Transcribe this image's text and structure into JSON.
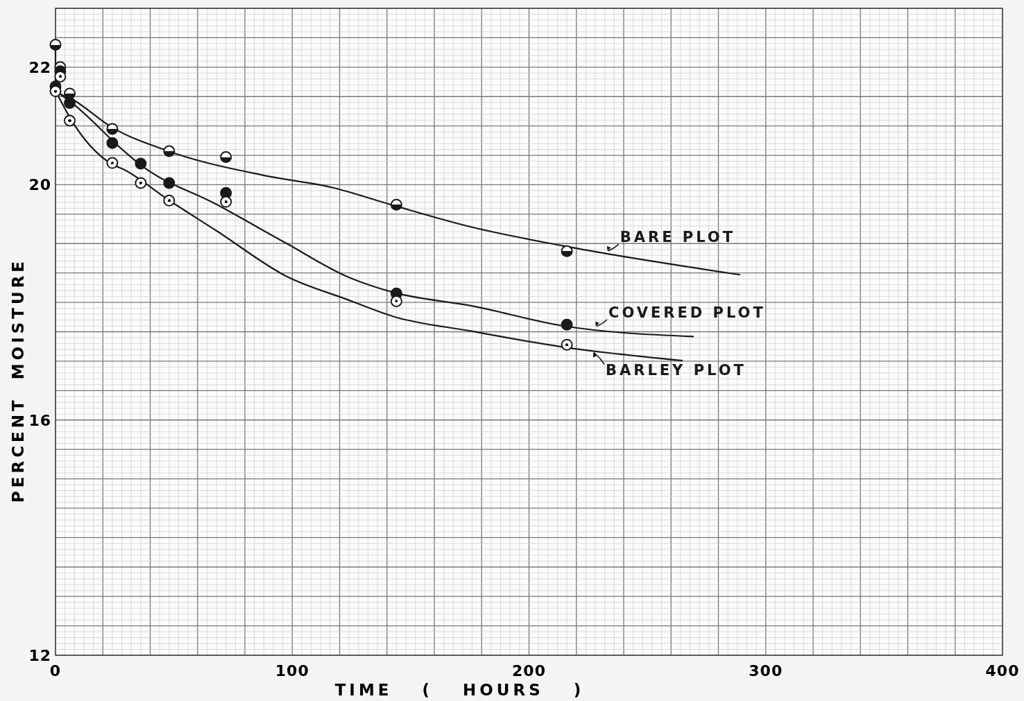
{
  "chart_data": {
    "type": "scatter",
    "xlabel": "TIME ( HOURS )",
    "ylabel": "PERCENT MOISTURE",
    "xlim": [
      0,
      400
    ],
    "xticks": [
      0,
      100,
      200,
      300,
      400
    ],
    "ylim": [
      12,
      23
    ],
    "yticks": [
      12,
      16,
      20,
      22
    ],
    "grid": true,
    "series": [
      {
        "marker": "circle",
        "color": "#1a1a1a",
        "x": [
          0,
          2,
          6,
          24,
          48,
          72,
          144,
          216
        ],
        "values": [
          22.38,
          22.0,
          21.55,
          20.95,
          20.57,
          20.47,
          19.66,
          18.87
        ]
      },
      {
        "marker": "circle",
        "color": "#1a1a1a",
        "x": [
          0,
          2,
          6,
          24,
          36,
          48,
          72,
          144,
          216
        ],
        "values": [
          21.67,
          21.93,
          21.39,
          20.71,
          20.36,
          20.03,
          19.86,
          18.15,
          17.62
        ]
      },
      {
        "marker": "circle",
        "color": "#1a1a1a",
        "x": [
          0,
          2,
          6,
          24,
          36,
          48,
          72,
          144,
          216
        ],
        "values": [
          21.59,
          21.84,
          21.09,
          20.37,
          20.03,
          19.73,
          19.71,
          18.02,
          17.28
        ]
      },
      {
        "type": "line",
        "name": "BARE PLOT",
        "color": "#1a1a1a",
        "x": [
          0,
          0,
          7.3,
          23.7,
          47.8,
          87.9,
          117.2,
          142.7,
          175.8,
          214.5,
          289.2
        ],
        "values": [
          22.38,
          21.6,
          21.45,
          20.98,
          20.57,
          20.16,
          19.95,
          19.65,
          19.28,
          18.96,
          18.47
        ]
      },
      {
        "type": "line",
        "name": "COVERED PLOT",
        "color": "#1a1a1a",
        "x": [
          0,
          7.3,
          29.3,
          35.2,
          68.3,
          97.7,
          123.1,
          142.7,
          175.8,
          214.5,
          269.6
        ],
        "values": [
          21.6,
          21.38,
          20.56,
          20.36,
          19.66,
          19.0,
          18.44,
          18.17,
          17.94,
          17.6,
          17.42
        ]
      },
      {
        "type": "line",
        "name": "BARLEY PLOT",
        "color": "#1a1a1a",
        "x": [
          0,
          6.7,
          23.4,
          29.3,
          47.8,
          68.3,
          97.7,
          123.1,
          142.7,
          175.8,
          214.5,
          264.9
        ],
        "values": [
          21.6,
          21.1,
          20.36,
          20.25,
          19.74,
          19.21,
          18.44,
          18.05,
          17.76,
          17.51,
          17.24,
          17.01
        ]
      }
    ]
  }
}
